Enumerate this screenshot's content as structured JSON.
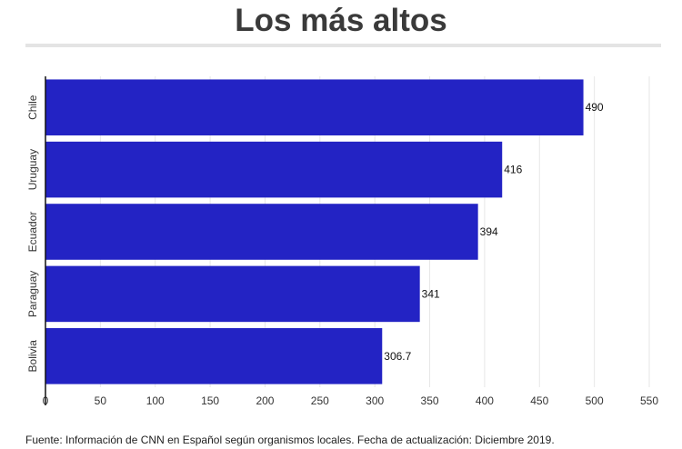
{
  "chart_data": {
    "type": "bar",
    "orientation": "horizontal",
    "title": "Los más altos",
    "categories": [
      "Chile",
      "Uruguay",
      "Ecuador",
      "Paraguay",
      "Bolivia"
    ],
    "values": [
      490,
      416,
      394,
      341,
      306.7
    ],
    "value_labels": [
      "490",
      "416",
      "394",
      "341",
      "306.7"
    ],
    "xlim": [
      0,
      550
    ],
    "xticks": [
      "0",
      "50",
      "100",
      "150",
      "200",
      "250",
      "300",
      "350",
      "400",
      "450",
      "500",
      "550"
    ],
    "xlabel": "",
    "ylabel": "",
    "grid": "vertical",
    "bar_color": "#2323c4"
  },
  "source": "Fuente: Información de CNN en Español según organismos locales. Fecha de actualización: Diciembre 2019."
}
